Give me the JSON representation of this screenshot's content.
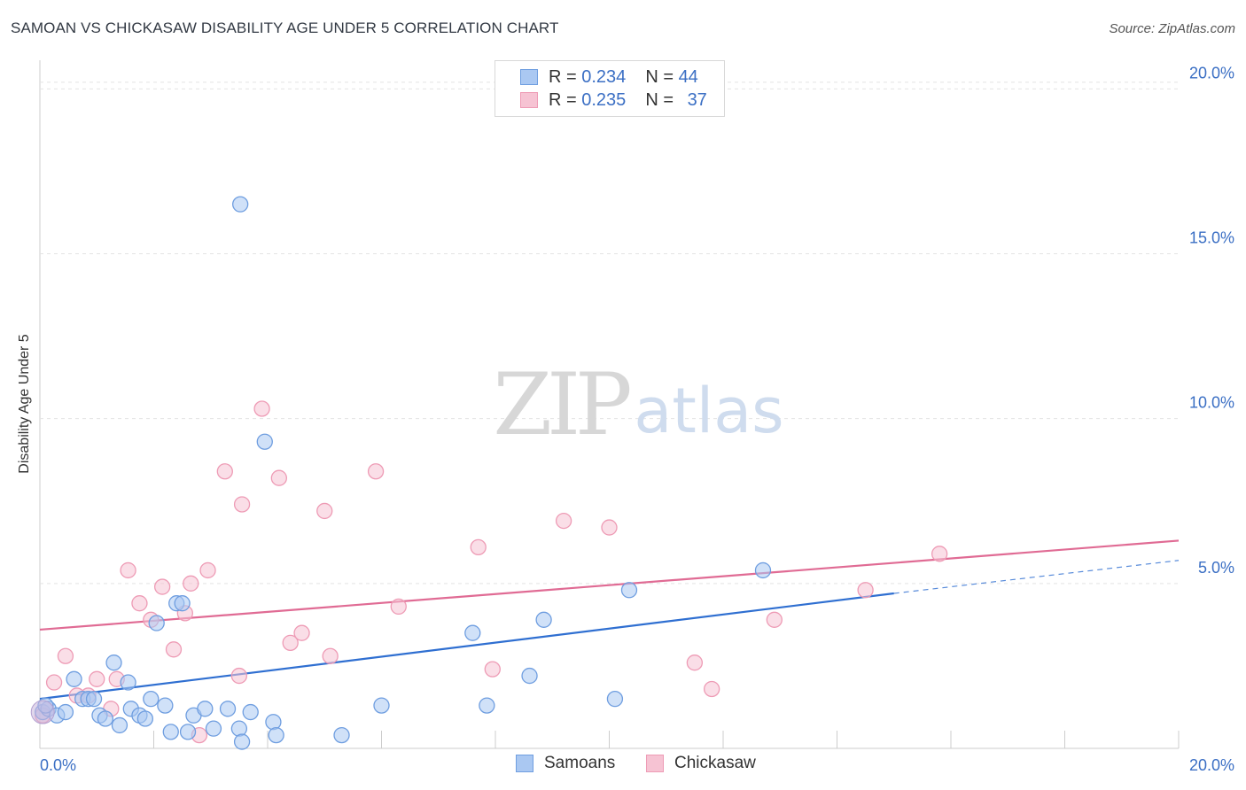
{
  "title": "SAMOAN VS CHICKASAW DISABILITY AGE UNDER 5 CORRELATION CHART",
  "source": "Source: ZipAtlas.com",
  "watermark": {
    "zip": "ZIP",
    "atlas": "atlas"
  },
  "legend": {
    "rows": [
      {
        "r_label": "R = ",
        "r_value": "0.234",
        "n_label": "N = ",
        "n_value": "44"
      },
      {
        "r_label": "R = ",
        "r_value": "0.235",
        "n_label": "N = ",
        "n_value": "37"
      }
    ]
  },
  "colors": {
    "samoans_fill": "#aac8f2",
    "samoans_stroke": "#6f9ee0",
    "samoans_line": "#2f6fd1",
    "chickasaw_fill": "#f6c3d3",
    "chickasaw_stroke": "#ee9bb5",
    "chickasaw_line": "#e06b94",
    "tick_label": "#3b6fc4",
    "grid": "#e3e3e3"
  },
  "chart_data": {
    "type": "scatter",
    "title": "SAMOAN VS CHICKASAW DISABILITY AGE UNDER 5 CORRELATION CHART",
    "xlabel": "",
    "ylabel": "Disability Age Under 5",
    "xlim": [
      0,
      20
    ],
    "ylim": [
      0,
      20.6
    ],
    "x_tick_labels": [
      "0.0%",
      "20.0%"
    ],
    "y_ticks": [
      5,
      10,
      15,
      20
    ],
    "y_tick_labels": [
      "5.0%",
      "10.0%",
      "15.0%",
      "20.0%"
    ],
    "grid": true,
    "legend_position": "top-center",
    "series": [
      {
        "name": "Samoans",
        "R": 0.234,
        "N": 44,
        "trend": {
          "x": [
            0,
            15
          ],
          "y": [
            1.5,
            4.7
          ],
          "dashed_to": [
            20,
            5.7
          ]
        },
        "points": [
          [
            0.05,
            1.1
          ],
          [
            0.15,
            1.2
          ],
          [
            0.3,
            1.0
          ],
          [
            0.45,
            1.1
          ],
          [
            0.6,
            2.1
          ],
          [
            0.75,
            1.5
          ],
          [
            0.85,
            1.5
          ],
          [
            0.95,
            1.5
          ],
          [
            1.05,
            1.0
          ],
          [
            1.15,
            0.9
          ],
          [
            1.3,
            2.6
          ],
          [
            1.4,
            0.7
          ],
          [
            1.55,
            2.0
          ],
          [
            1.6,
            1.2
          ],
          [
            1.75,
            1.0
          ],
          [
            1.85,
            0.9
          ],
          [
            1.95,
            1.5
          ],
          [
            2.05,
            3.8
          ],
          [
            2.2,
            1.3
          ],
          [
            2.3,
            0.5
          ],
          [
            2.4,
            4.4
          ],
          [
            2.5,
            4.4
          ],
          [
            2.6,
            0.5
          ],
          [
            2.7,
            1.0
          ],
          [
            2.9,
            1.2
          ],
          [
            3.05,
            0.6
          ],
          [
            3.3,
            1.2
          ],
          [
            3.5,
            0.6
          ],
          [
            3.52,
            16.5
          ],
          [
            3.55,
            0.2
          ],
          [
            3.7,
            1.1
          ],
          [
            3.95,
            9.3
          ],
          [
            4.1,
            0.8
          ],
          [
            4.15,
            0.4
          ],
          [
            5.3,
            0.4
          ],
          [
            6.0,
            1.3
          ],
          [
            7.6,
            3.5
          ],
          [
            7.85,
            1.3
          ],
          [
            8.6,
            2.2
          ],
          [
            8.85,
            3.9
          ],
          [
            10.1,
            1.5
          ],
          [
            10.35,
            4.8
          ],
          [
            12.7,
            5.4
          ],
          [
            0.1,
            1.3
          ]
        ]
      },
      {
        "name": "Chickasaw",
        "R": 0.235,
        "N": 37,
        "trend": {
          "x": [
            0,
            20
          ],
          "y": [
            3.6,
            6.3
          ]
        },
        "points": [
          [
            0.05,
            1.0
          ],
          [
            0.25,
            2.0
          ],
          [
            0.45,
            2.8
          ],
          [
            0.65,
            1.6
          ],
          [
            0.85,
            1.6
          ],
          [
            1.0,
            2.1
          ],
          [
            1.25,
            1.2
          ],
          [
            1.35,
            2.1
          ],
          [
            1.55,
            5.4
          ],
          [
            1.75,
            4.4
          ],
          [
            1.95,
            3.9
          ],
          [
            2.15,
            4.9
          ],
          [
            2.35,
            3.0
          ],
          [
            2.55,
            4.1
          ],
          [
            2.65,
            5.0
          ],
          [
            2.8,
            0.4
          ],
          [
            2.95,
            5.4
          ],
          [
            3.25,
            8.4
          ],
          [
            3.5,
            2.2
          ],
          [
            3.55,
            7.4
          ],
          [
            3.9,
            10.3
          ],
          [
            4.2,
            8.2
          ],
          [
            4.4,
            3.2
          ],
          [
            4.6,
            3.5
          ],
          [
            5.0,
            7.2
          ],
          [
            5.1,
            2.8
          ],
          [
            5.9,
            8.4
          ],
          [
            6.3,
            4.3
          ],
          [
            7.7,
            6.1
          ],
          [
            7.95,
            2.4
          ],
          [
            9.2,
            6.9
          ],
          [
            10.0,
            6.7
          ],
          [
            11.5,
            2.6
          ],
          [
            11.8,
            1.8
          ],
          [
            12.9,
            3.9
          ],
          [
            14.5,
            4.8
          ],
          [
            15.8,
            5.9
          ]
        ]
      }
    ]
  }
}
